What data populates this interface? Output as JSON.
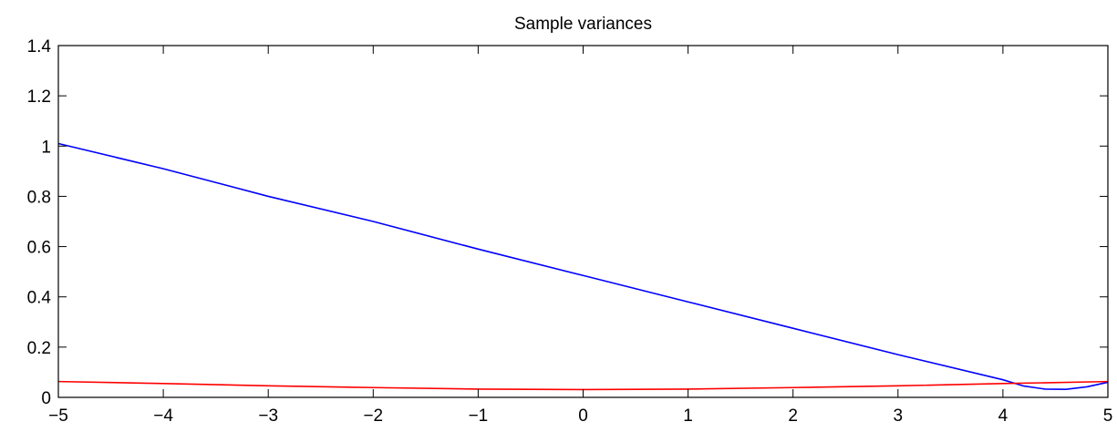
{
  "chart_data": {
    "type": "line",
    "title": "Sample variances",
    "xlabel": "",
    "ylabel": "",
    "xlim": [
      -5,
      5
    ],
    "ylim": [
      0,
      1.4
    ],
    "xticks": [
      -5,
      -4,
      -3,
      -2,
      -1,
      0,
      1,
      2,
      3,
      4,
      5
    ],
    "xtick_labels": [
      "−5",
      "−4",
      "−3",
      "−2",
      "−1",
      "0",
      "1",
      "2",
      "3",
      "4",
      "5"
    ],
    "yticks": [
      0,
      0.2,
      0.4,
      0.6,
      0.8,
      1.0,
      1.2,
      1.4
    ],
    "ytick_labels": [
      "0",
      "0.2",
      "0.4",
      "0.6",
      "0.8",
      "1",
      "1.2",
      "1.4"
    ],
    "grid": false,
    "series": [
      {
        "color": "#0000ff",
        "x": [
          -5,
          -4,
          -3,
          -2,
          -1,
          0,
          1,
          2,
          3,
          4,
          4.2,
          4.4,
          4.6,
          4.8,
          5
        ],
        "y": [
          1.01,
          0.91,
          0.8,
          0.7,
          0.59,
          0.485,
          0.38,
          0.275,
          0.17,
          0.07,
          0.045,
          0.033,
          0.032,
          0.042,
          0.06
        ]
      },
      {
        "color": "#ff0000",
        "x": [
          -5,
          -4,
          -3,
          -2,
          -1,
          0,
          1,
          2,
          3,
          4,
          5
        ],
        "y": [
          0.063,
          0.055,
          0.046,
          0.039,
          0.033,
          0.031,
          0.033,
          0.039,
          0.046,
          0.055,
          0.063
        ]
      }
    ]
  }
}
